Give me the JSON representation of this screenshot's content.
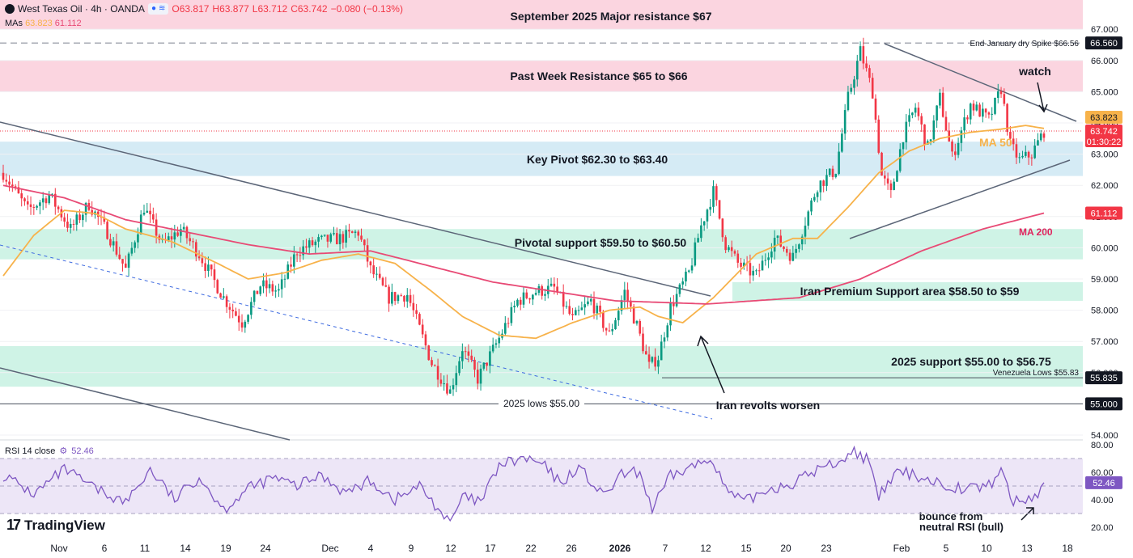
{
  "header": {
    "symbol": "West Texas Oil · 4h · OANDA",
    "open": "O63.817",
    "high": "H63.877",
    "low": "L63.712",
    "close": "C63.742",
    "change": "−0.080 (−0.13%)",
    "mas_label": "MAs",
    "ma50_value": "63.823",
    "ma200_value": "61.112"
  },
  "rsi_header": {
    "label": "RSI 14 close",
    "value": "52.46"
  },
  "branding": {
    "logo_text": "TradingView"
  },
  "colors": {
    "up": "#089981",
    "down": "#f23645",
    "ma50": "#f7b24a",
    "ma200": "#e84a75",
    "resistance_zone": "#fbd5e0",
    "pivot_zone": "#d5ebf5",
    "support_zone": "#cff3e6",
    "rsi_band": "#ede6f7",
    "rsi_line": "#7e57c2",
    "trendline": "#5b6577"
  },
  "chart_data": {
    "type": "candlestick",
    "timeframe": "4h",
    "ylim": [
      54,
      67.5
    ],
    "price_ticks": [
      "54.000",
      "55.000",
      "56.000",
      "57.000",
      "58.000",
      "59.000",
      "60.000",
      "61.000",
      "62.000",
      "63.000",
      "64.000",
      "65.000",
      "66.000",
      "67.000"
    ],
    "x_ticks": [
      "Nov",
      "6",
      "11",
      "14",
      "19",
      "24",
      "Dec",
      "4",
      "9",
      "12",
      "17",
      "22",
      "26",
      "2026",
      "7",
      "12",
      "15",
      "20",
      "23",
      "Feb",
      "5",
      "10",
      "13",
      "18"
    ],
    "price_waypoints": [
      [
        0,
        62.4
      ],
      [
        8,
        61.2
      ],
      [
        15,
        61.7
      ],
      [
        22,
        60.6
      ],
      [
        28,
        61.4
      ],
      [
        34,
        60.5
      ],
      [
        40,
        59.3
      ],
      [
        46,
        61.3
      ],
      [
        52,
        60.1
      ],
      [
        58,
        60.6
      ],
      [
        64,
        59.8
      ],
      [
        72,
        58.4
      ],
      [
        78,
        57.6
      ],
      [
        84,
        58.8
      ],
      [
        90,
        58.6
      ],
      [
        96,
        59.9
      ],
      [
        103,
        60.2
      ],
      [
        110,
        60.3
      ],
      [
        116,
        60.5
      ],
      [
        120,
        59.3
      ],
      [
        126,
        58.4
      ],
      [
        132,
        58.5
      ],
      [
        140,
        56.3
      ],
      [
        146,
        55.4
      ],
      [
        150,
        56.8
      ],
      [
        155,
        55.8
      ],
      [
        162,
        57.1
      ],
      [
        168,
        58.3
      ],
      [
        174,
        58.6
      ],
      [
        180,
        58.7
      ],
      [
        186,
        57.7
      ],
      [
        192,
        58.3
      ],
      [
        198,
        57.2
      ],
      [
        203,
        58.6
      ],
      [
        207,
        57.5
      ],
      [
        211,
        56.2
      ],
      [
        214,
        56.5
      ],
      [
        218,
        58.1
      ],
      [
        224,
        59.2
      ],
      [
        228,
        60.7
      ],
      [
        232,
        61.8
      ],
      [
        236,
        60.1
      ],
      [
        240,
        59.5
      ],
      [
        246,
        59.1
      ],
      [
        252,
        60.3
      ],
      [
        258,
        59.7
      ],
      [
        266,
        62.0
      ],
      [
        272,
        62.5
      ],
      [
        276,
        64.8
      ],
      [
        280,
        66.3
      ],
      [
        284,
        65.0
      ],
      [
        287,
        62.3
      ],
      [
        290,
        61.7
      ],
      [
        294,
        63.6
      ],
      [
        298,
        64.5
      ],
      [
        302,
        63.2
      ],
      [
        306,
        64.8
      ],
      [
        310,
        62.9
      ],
      [
        316,
        64.6
      ],
      [
        322,
        64.1
      ],
      [
        326,
        65.1
      ],
      [
        329,
        63.3
      ],
      [
        332,
        62.8
      ],
      [
        336,
        63.0
      ],
      [
        340,
        63.74
      ]
    ],
    "series": [
      {
        "name": "MA 50",
        "waypoints": [
          [
            0,
            59.1
          ],
          [
            10,
            60.4
          ],
          [
            20,
            61.2
          ],
          [
            30,
            61.1
          ],
          [
            40,
            60.6
          ],
          [
            55,
            60.2
          ],
          [
            70,
            59.5
          ],
          [
            80,
            59.0
          ],
          [
            92,
            59.2
          ],
          [
            104,
            59.6
          ],
          [
            116,
            59.8
          ],
          [
            128,
            59.5
          ],
          [
            140,
            58.6
          ],
          [
            150,
            57.8
          ],
          [
            162,
            57.2
          ],
          [
            174,
            57.1
          ],
          [
            186,
            57.6
          ],
          [
            198,
            58.0
          ],
          [
            208,
            58.1
          ],
          [
            214,
            57.8
          ],
          [
            222,
            57.6
          ],
          [
            232,
            58.4
          ],
          [
            246,
            59.8
          ],
          [
            258,
            60.3
          ],
          [
            266,
            60.3
          ],
          [
            276,
            61.3
          ],
          [
            286,
            62.4
          ],
          [
            296,
            63.1
          ],
          [
            306,
            63.5
          ],
          [
            316,
            63.7
          ],
          [
            326,
            63.8
          ],
          [
            334,
            63.92
          ],
          [
            340,
            63.823
          ]
        ]
      },
      {
        "name": "MA 200",
        "waypoints": [
          [
            0,
            62.0
          ],
          [
            20,
            61.6
          ],
          [
            40,
            60.9
          ],
          [
            60,
            60.5
          ],
          [
            80,
            60.1
          ],
          [
            100,
            59.8
          ],
          [
            120,
            59.9
          ],
          [
            140,
            59.4
          ],
          [
            160,
            58.9
          ],
          [
            180,
            58.6
          ],
          [
            200,
            58.3
          ],
          [
            230,
            58.2
          ],
          [
            260,
            58.4
          ],
          [
            280,
            59.0
          ],
          [
            300,
            59.9
          ],
          [
            320,
            60.6
          ],
          [
            340,
            61.112
          ]
        ]
      }
    ],
    "current": {
      "price": "63.742",
      "countdown": "01:30:22",
      "ma50": "63.823",
      "ma200": "61.112"
    },
    "zones": [
      {
        "label": "September 2025 Major resistance $67",
        "from": 67.0,
        "to": 67.95,
        "kind": "resistance"
      },
      {
        "label": "Past Week Resistance $65 to $66",
        "from": 65.0,
        "to": 66.0,
        "kind": "resistance"
      },
      {
        "label": "Key Pivot $62.30 to $63.40",
        "from": 62.3,
        "to": 63.4,
        "kind": "pivot"
      },
      {
        "label": "Pivotal support $59.50 to $60.50",
        "from": 59.63,
        "to": 60.6,
        "kind": "support"
      },
      {
        "label": "Iran Premium Support area $58.50 to $59",
        "from": 58.3,
        "to": 58.9,
        "kind": "support"
      },
      {
        "label": "2025 support $55.00 to $56.75",
        "from": 55.55,
        "to": 56.85,
        "kind": "support"
      }
    ],
    "levels": [
      {
        "label": "End-January dry Spike $66.56",
        "price": 66.56,
        "axis": "66.560",
        "style": "dashed"
      },
      {
        "label": "Venezuela Lows $55.83",
        "price": 55.835,
        "axis": "55.835",
        "style": "solid"
      },
      {
        "label": "2025 lows $55.00",
        "price": 55.0,
        "axis": "55.000",
        "style": "solid"
      }
    ],
    "annotations": [
      "watch",
      "MA 50",
      "MA 200",
      "Iran revolts worsen",
      "bounce from neutral RSI (bull)"
    ],
    "rsi": {
      "name": "RSI 14",
      "ylim": [
        15,
        85
      ],
      "ticks": [
        "20.00",
        "40.00",
        "60.00",
        "80.00"
      ],
      "band": [
        30,
        70
      ],
      "midline": 50,
      "current": "52.46",
      "waypoints": [
        [
          0,
          58
        ],
        [
          10,
          44
        ],
        [
          20,
          62
        ],
        [
          30,
          48
        ],
        [
          40,
          38
        ],
        [
          48,
          62
        ],
        [
          56,
          40
        ],
        [
          64,
          57
        ],
        [
          72,
          33
        ],
        [
          80,
          48
        ],
        [
          88,
          56
        ],
        [
          96,
          50
        ],
        [
          104,
          58
        ],
        [
          112,
          45
        ],
        [
          120,
          54
        ],
        [
          128,
          40
        ],
        [
          136,
          50
        ],
        [
          142,
          34
        ],
        [
          146,
          22
        ],
        [
          150,
          42
        ],
        [
          156,
          38
        ],
        [
          162,
          65
        ],
        [
          170,
          70
        ],
        [
          176,
          66
        ],
        [
          182,
          52
        ],
        [
          188,
          64
        ],
        [
          196,
          42
        ],
        [
          202,
          58
        ],
        [
          208,
          60
        ],
        [
          212,
          33
        ],
        [
          218,
          57
        ],
        [
          226,
          65
        ],
        [
          232,
          70
        ],
        [
          236,
          47
        ],
        [
          242,
          38
        ],
        [
          250,
          48
        ],
        [
          258,
          52
        ],
        [
          266,
          62
        ],
        [
          272,
          67
        ],
        [
          278,
          75
        ],
        [
          282,
          70
        ],
        [
          286,
          42
        ],
        [
          292,
          60
        ],
        [
          298,
          58
        ],
        [
          306,
          52
        ],
        [
          314,
          48
        ],
        [
          322,
          50
        ],
        [
          326,
          62
        ],
        [
          330,
          38
        ],
        [
          334,
          40
        ],
        [
          338,
          44
        ],
        [
          340,
          52.46
        ]
      ]
    }
  }
}
